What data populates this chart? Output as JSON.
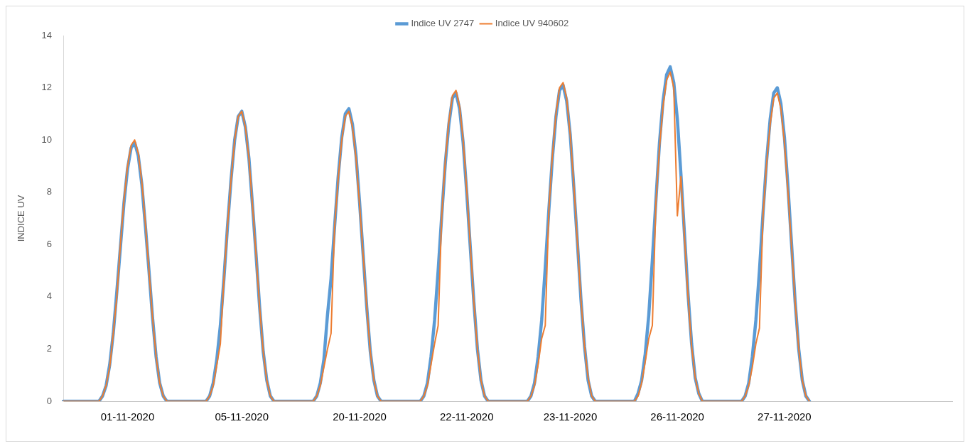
{
  "chart_data": {
    "type": "line",
    "ylabel": "INDICE UV",
    "ylim": [
      0,
      14
    ],
    "yticks": [
      0,
      2,
      4,
      6,
      8,
      10,
      12,
      14
    ],
    "grid": false,
    "legend": "top",
    "marker": "none",
    "line_style": "solid",
    "categories": [
      null,
      null,
      null,
      null,
      null,
      null,
      null,
      null,
      null,
      null,
      null,
      null,
      null,
      null,
      null,
      null,
      null,
      null,
      "01-11-2020",
      null,
      null,
      null,
      null,
      null,
      null,
      null,
      null,
      null,
      null,
      null,
      null,
      null,
      null,
      null,
      null,
      null,
      null,
      null,
      null,
      null,
      null,
      null,
      null,
      null,
      null,
      null,
      null,
      null,
      null,
      null,
      "05-11-2020",
      null,
      null,
      null,
      null,
      null,
      null,
      null,
      null,
      null,
      null,
      null,
      null,
      null,
      null,
      null,
      null,
      null,
      null,
      null,
      null,
      null,
      null,
      null,
      null,
      null,
      null,
      null,
      null,
      null,
      null,
      null,
      null,
      "20-11-2020",
      null,
      null,
      null,
      null,
      null,
      null,
      null,
      null,
      null,
      null,
      null,
      null,
      null,
      null,
      null,
      null,
      null,
      null,
      null,
      null,
      null,
      null,
      null,
      null,
      null,
      null,
      null,
      null,
      null,
      "22-11-2020",
      null,
      null,
      null,
      null,
      null,
      null,
      null,
      null,
      null,
      null,
      null,
      null,
      null,
      null,
      null,
      null,
      null,
      null,
      null,
      null,
      null,
      null,
      null,
      null,
      null,
      null,
      null,
      null,
      "23-11-2020",
      null,
      null,
      null,
      null,
      null,
      null,
      null,
      null,
      null,
      null,
      null,
      null,
      null,
      null,
      null,
      null,
      null,
      null,
      null,
      null,
      null,
      null,
      null,
      null,
      null,
      null,
      null,
      null,
      null,
      "26-11-2020",
      null,
      null,
      null,
      null,
      null,
      null,
      null,
      null,
      null,
      null,
      null,
      null,
      null,
      null,
      null,
      null,
      null,
      null,
      null,
      null,
      null,
      null,
      null,
      null,
      null,
      null,
      null,
      null,
      null,
      "27-11-2020",
      null,
      null,
      null,
      null,
      null,
      null,
      null,
      null,
      null,
      null,
      null,
      null,
      null,
      null,
      null,
      null,
      null,
      null,
      null,
      null,
      null,
      null,
      null,
      null,
      null,
      null,
      null,
      null,
      null,
      null,
      null,
      null,
      null,
      null,
      null,
      null,
      null,
      null,
      null,
      null,
      null,
      null,
      null,
      null,
      null,
      null,
      null
    ],
    "series": [
      {
        "name": "Indice UV 2747",
        "color": "#5b9bd5",
        "values": [
          0,
          0,
          0,
          0,
          0,
          0,
          0,
          0,
          0,
          0,
          0,
          0.2,
          0.6,
          1.4,
          2.6,
          4.2,
          5.9,
          7.6,
          8.9,
          9.7,
          9.9,
          9.4,
          8.3,
          6.7,
          5.0,
          3.2,
          1.7,
          0.7,
          0.2,
          0,
          0,
          0,
          0,
          0,
          0,
          0,
          0,
          0,
          0,
          0,
          0,
          0.2,
          0.7,
          1.6,
          2.9,
          4.7,
          6.7,
          8.5,
          10.0,
          10.9,
          11.1,
          10.5,
          9.3,
          7.5,
          5.6,
          3.6,
          1.9,
          0.8,
          0.2,
          0,
          0,
          0,
          0,
          0,
          0,
          0,
          0,
          0,
          0,
          0,
          0,
          0.2,
          0.7,
          1.6,
          3.3,
          4.7,
          6.7,
          8.6,
          10.1,
          11.0,
          11.2,
          10.6,
          9.4,
          7.6,
          5.6,
          3.6,
          1.9,
          0.8,
          0.2,
          0,
          0,
          0,
          0,
          0,
          0,
          0,
          0,
          0,
          0,
          0,
          0,
          0.2,
          0.7,
          1.7,
          3.1,
          5.0,
          7.1,
          9.1,
          10.6,
          11.6,
          11.8,
          11.2,
          9.9,
          8.0,
          5.9,
          3.8,
          2.0,
          0.8,
          0.2,
          0,
          0,
          0,
          0,
          0,
          0,
          0,
          0,
          0,
          0,
          0,
          0,
          0.2,
          0.7,
          1.7,
          3.1,
          5.1,
          7.3,
          9.3,
          10.9,
          11.9,
          12.1,
          11.5,
          10.2,
          8.2,
          6.1,
          3.9,
          2.1,
          0.8,
          0.2,
          0,
          0,
          0,
          0,
          0,
          0,
          0,
          0,
          0,
          0,
          0,
          0,
          0.3,
          0.8,
          1.8,
          3.3,
          5.4,
          7.7,
          9.9,
          11.5,
          12.5,
          12.8,
          12.2,
          10.8,
          8.7,
          6.4,
          4.1,
          2.2,
          0.9,
          0.3,
          0,
          0,
          0,
          0,
          0,
          0,
          0,
          0,
          0,
          0,
          0,
          0,
          0.2,
          0.7,
          1.7,
          3.1,
          5.0,
          7.2,
          9.2,
          10.8,
          11.8,
          12.0,
          11.4,
          10.1,
          8.2,
          6.0,
          3.8,
          2.0,
          0.8,
          0.2,
          0,
          null,
          null,
          null,
          null,
          null,
          null,
          null,
          null,
          null,
          null,
          null,
          null,
          null,
          null,
          null,
          null,
          null,
          null,
          null,
          null,
          null,
          null,
          null,
          null,
          null,
          null,
          null,
          null,
          null,
          null,
          null,
          null,
          null,
          null,
          null,
          null,
          null,
          null,
          null,
          null
        ]
      },
      {
        "name": "Indice UV 940602",
        "color": "#ed7d31",
        "values": [
          0,
          0,
          0,
          0,
          0,
          0,
          0,
          0,
          0,
          0,
          0,
          0.2,
          0.6,
          1.3,
          2.6,
          4.0,
          6.0,
          7.7,
          9.0,
          9.8,
          10.0,
          9.5,
          8.4,
          6.8,
          5.0,
          3.2,
          1.7,
          0.7,
          0.2,
          0,
          0,
          0,
          0,
          0,
          0,
          0,
          0,
          0,
          0,
          0,
          0,
          0.2,
          0.6,
          1.4,
          2.2,
          4.7,
          6.7,
          8.5,
          10.0,
          10.9,
          11.1,
          10.5,
          9.3,
          7.5,
          5.6,
          3.6,
          1.9,
          0.8,
          0.2,
          0,
          0,
          0,
          0,
          0,
          0,
          0,
          0,
          0,
          0,
          0,
          0,
          0.2,
          0.6,
          1.3,
          2.0,
          2.6,
          6.7,
          8.5,
          10.0,
          10.9,
          11.1,
          10.5,
          9.3,
          7.5,
          5.6,
          3.6,
          1.9,
          0.8,
          0.2,
          0,
          0,
          0,
          0,
          0,
          0,
          0,
          0,
          0,
          0,
          0,
          0,
          0.2,
          0.6,
          1.4,
          2.2,
          2.9,
          7.1,
          9.2,
          10.7,
          11.7,
          11.9,
          11.3,
          10.0,
          8.1,
          6.0,
          3.8,
          2.0,
          0.8,
          0.2,
          0,
          0,
          0,
          0,
          0,
          0,
          0,
          0,
          0,
          0,
          0,
          0,
          0.2,
          0.6,
          1.4,
          2.4,
          2.9,
          7.3,
          9.4,
          11.0,
          12.0,
          12.2,
          11.6,
          10.2,
          8.3,
          6.1,
          3.9,
          2.1,
          0.9,
          0.2,
          0,
          0,
          0,
          0,
          0,
          0,
          0,
          0,
          0,
          0,
          0,
          0,
          0.2,
          0.7,
          1.5,
          2.4,
          2.9,
          7.6,
          9.7,
          11.3,
          12.3,
          12.6,
          12.0,
          7.1,
          8.6,
          6.3,
          4.0,
          2.1,
          0.9,
          0.3,
          0,
          0,
          0,
          0,
          0,
          0,
          0,
          0,
          0,
          0,
          0,
          0,
          0.2,
          0.6,
          1.3,
          2.2,
          2.8,
          7.1,
          9.1,
          10.6,
          11.6,
          11.8,
          11.2,
          9.9,
          8.0,
          5.9,
          3.8,
          2.0,
          0.8,
          0.2,
          0,
          null,
          null,
          null,
          null,
          null,
          null,
          null,
          null,
          null,
          null,
          null,
          null,
          null,
          null,
          null,
          null,
          null,
          null,
          null,
          null,
          null,
          null,
          null,
          null,
          null,
          null,
          null,
          null,
          null,
          null,
          null,
          null,
          null,
          null,
          null,
          null,
          null,
          null,
          null,
          null
        ]
      }
    ]
  }
}
